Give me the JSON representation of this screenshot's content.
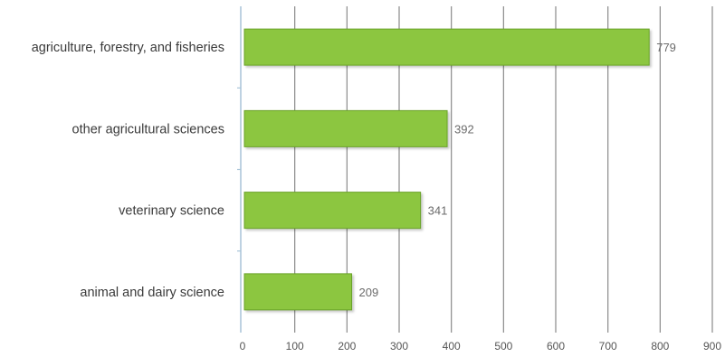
{
  "chart_data": {
    "type": "bar",
    "orientation": "horizontal",
    "categories": [
      "agriculture, forestry, and fisheries",
      "other agricultural sciences",
      "veterinary science",
      "animal and dairy science"
    ],
    "values": [
      779,
      392,
      341,
      209
    ],
    "xlim": [
      0,
      900
    ],
    "x_ticks": [
      "0",
      "100",
      "200",
      "300",
      "400",
      "500",
      "600",
      "700",
      "800",
      "900"
    ],
    "data_labels": [
      "779",
      "392",
      "341",
      "209"
    ],
    "grid": true,
    "bar_color": "#8cc63f",
    "bar_border_color": "#6aa22a",
    "grid_color": "#8a8a8a",
    "axis_color": "#a8c4d8"
  }
}
